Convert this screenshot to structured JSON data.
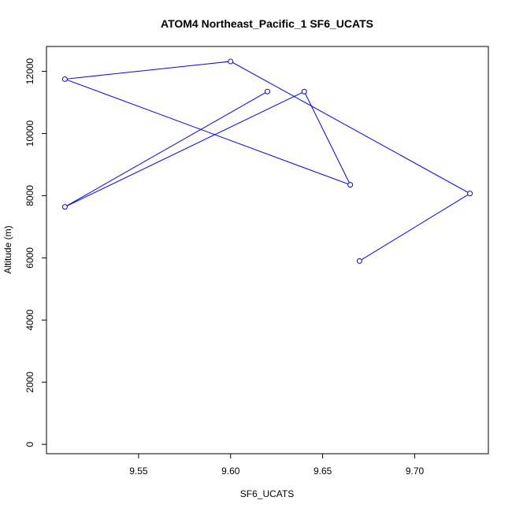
{
  "chart_data": {
    "type": "line",
    "title": "ATOM4 Northeast_Pacific_1 SF6_UCATS",
    "xlabel": "SF6_UCATS",
    "ylabel": "Altitude (m)",
    "xlim": [
      9.5,
      9.74
    ],
    "ylim": [
      -300,
      12800
    ],
    "xticks": [
      9.55,
      9.6,
      9.65,
      9.7
    ],
    "xtick_labels": [
      "9.55",
      "9.60",
      "9.65",
      "9.70"
    ],
    "yticks": [
      0,
      2000,
      4000,
      6000,
      8000,
      10000,
      12000
    ],
    "ytick_labels": [
      "0",
      "2000",
      "4000",
      "6000",
      "8000",
      "10000",
      "12000"
    ],
    "grid": false,
    "legend": "none",
    "series": [
      {
        "color": "#0000ff",
        "marker": "open-circle",
        "x": [
          9.67,
          9.73,
          9.6,
          9.51,
          9.665,
          9.64,
          9.51,
          9.62
        ],
        "y": [
          5900,
          8070,
          12320,
          11750,
          8350,
          11350,
          7640,
          11350
        ]
      }
    ]
  }
}
